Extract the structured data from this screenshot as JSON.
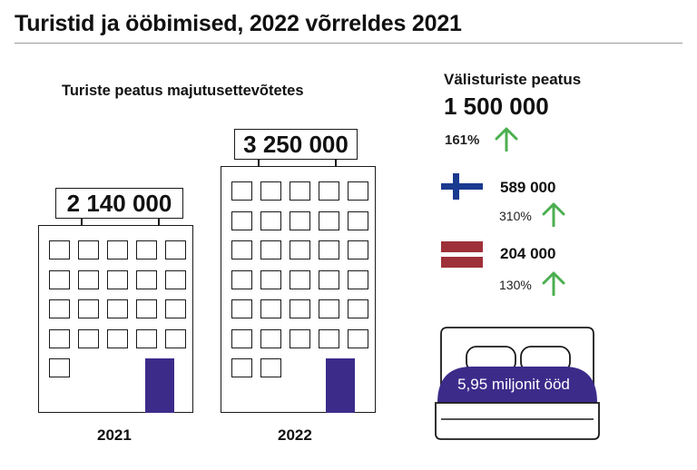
{
  "title": "Turistid ja ööbimised, 2022 võrreldes 2021",
  "left": {
    "subtitle": "Turiste peatus majutusettevõtetes",
    "b2021": {
      "value": "2 140 000",
      "year": "2021"
    },
    "b2022": {
      "value": "3 250 000",
      "year": "2022"
    }
  },
  "right": {
    "title": "Välisturiste peatus",
    "total": "1 500 000",
    "total_pct": "161%",
    "finland": {
      "flag": "finland-flag",
      "value": "589 000",
      "pct": "310%"
    },
    "latvia": {
      "flag": "latvia-flag",
      "value": "204 000",
      "pct": "130%"
    },
    "nights": "5,95 miljonit ööd"
  },
  "colors": {
    "door": "#3d2b8a",
    "blanket": "#3d2b8a",
    "arrow": "#4caf50",
    "finland_blue": "#1a3a8f",
    "latvia_red": "#9e3039"
  }
}
